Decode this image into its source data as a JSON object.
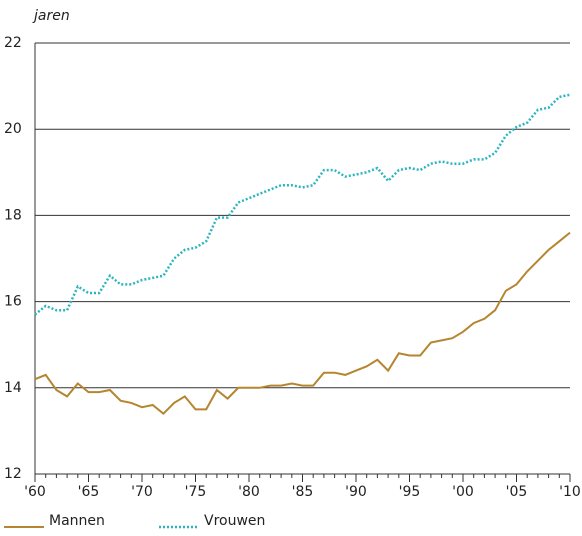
{
  "chart_data": {
    "type": "line",
    "y_label": "jaren",
    "x": [
      1960,
      1961,
      1962,
      1963,
      1964,
      1965,
      1966,
      1967,
      1968,
      1969,
      1970,
      1971,
      1972,
      1973,
      1974,
      1975,
      1976,
      1977,
      1978,
      1979,
      1980,
      1981,
      1982,
      1983,
      1984,
      1985,
      1986,
      1987,
      1988,
      1989,
      1990,
      1991,
      1992,
      1993,
      1994,
      1995,
      1996,
      1997,
      1998,
      1999,
      2000,
      2001,
      2002,
      2003,
      2004,
      2005,
      2006,
      2007,
      2008,
      2009,
      2010
    ],
    "series": [
      {
        "name": "Mannen",
        "color": "#b5852f",
        "style": "solid",
        "values": [
          14.2,
          14.3,
          13.95,
          13.8,
          14.1,
          13.9,
          13.9,
          13.95,
          13.7,
          13.65,
          13.55,
          13.6,
          13.4,
          13.65,
          13.8,
          13.5,
          13.5,
          13.95,
          13.75,
          14.0,
          14.0,
          14.0,
          14.05,
          14.05,
          14.1,
          14.05,
          14.05,
          14.35,
          14.35,
          14.3,
          14.4,
          14.5,
          14.65,
          14.4,
          14.8,
          14.75,
          14.75,
          15.05,
          15.1,
          15.15,
          15.3,
          15.5,
          15.6,
          15.8,
          16.25,
          16.4,
          16.7,
          16.95,
          17.2,
          17.4,
          17.6
        ]
      },
      {
        "name": "Vrouwen",
        "color": "#2bb5c0",
        "style": "dotted",
        "values": [
          15.7,
          15.9,
          15.8,
          15.8,
          16.35,
          16.2,
          16.2,
          16.6,
          16.4,
          16.4,
          16.5,
          16.55,
          16.6,
          17.0,
          17.2,
          17.25,
          17.4,
          17.95,
          17.95,
          18.3,
          18.4,
          18.5,
          18.6,
          18.7,
          18.7,
          18.65,
          18.7,
          19.05,
          19.05,
          18.9,
          18.95,
          19.0,
          19.1,
          18.8,
          19.05,
          19.1,
          19.05,
          19.2,
          19.25,
          19.2,
          19.2,
          19.3,
          19.3,
          19.45,
          19.85,
          20.05,
          20.15,
          20.45,
          20.5,
          20.75,
          20.8
        ]
      }
    ],
    "xlim": [
      1960,
      2010
    ],
    "xticks": [
      {
        "value": 1960,
        "label": "'60"
      },
      {
        "value": 1965,
        "label": "'65"
      },
      {
        "value": 1970,
        "label": "'70"
      },
      {
        "value": 1975,
        "label": "'75"
      },
      {
        "value": 1980,
        "label": "'80"
      },
      {
        "value": 1985,
        "label": "'85"
      },
      {
        "value": 1990,
        "label": "'90"
      },
      {
        "value": 1995,
        "label": "'95"
      },
      {
        "value": 2000,
        "label": "'00"
      },
      {
        "value": 2005,
        "label": "'05"
      },
      {
        "value": 2010,
        "label": "'10"
      }
    ],
    "ylim": [
      12,
      22
    ],
    "yticks": [
      12,
      14,
      16,
      18,
      20,
      22
    ],
    "grid": true
  }
}
